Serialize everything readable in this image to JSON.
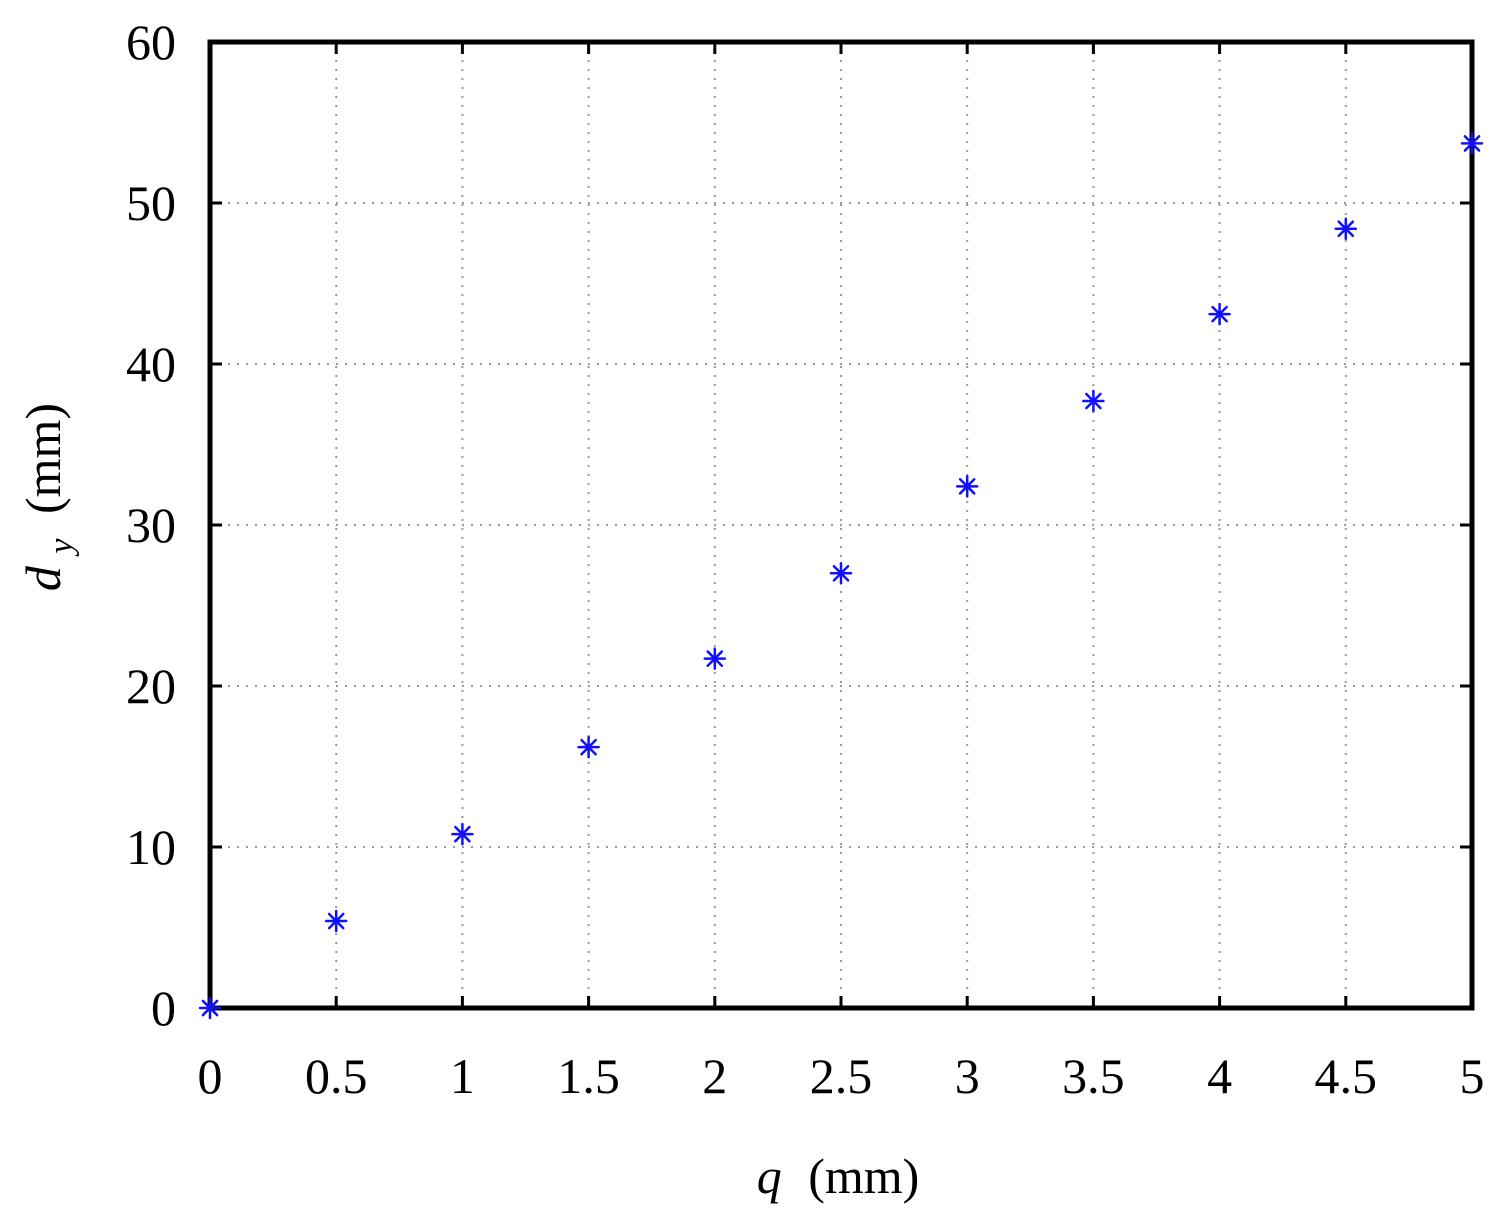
{
  "chart_data": {
    "type": "scatter",
    "marker": "asterisk",
    "marker_color": "#1010ff",
    "grid": true,
    "xlabel": {
      "symbol": "q",
      "unit": "(mm)"
    },
    "ylabel": {
      "symbol": "d",
      "subscript": "y",
      "unit": "(mm)"
    },
    "xlim": [
      0,
      5
    ],
    "ylim": [
      0,
      60
    ],
    "xticks": [
      "0",
      "0.5",
      "1",
      "1.5",
      "2",
      "2.5",
      "3",
      "3.5",
      "4",
      "4.5",
      "5"
    ],
    "yticks": [
      "0",
      "10",
      "20",
      "30",
      "40",
      "50",
      "60"
    ],
    "series": [
      {
        "x": [
          0,
          0.5,
          1,
          1.5,
          2,
          2.5,
          3,
          3.5,
          4,
          4.5,
          5
        ],
        "y": [
          0,
          5.4,
          10.8,
          16.2,
          21.7,
          27.0,
          32.4,
          37.7,
          43.1,
          48.4,
          53.7
        ]
      }
    ]
  }
}
